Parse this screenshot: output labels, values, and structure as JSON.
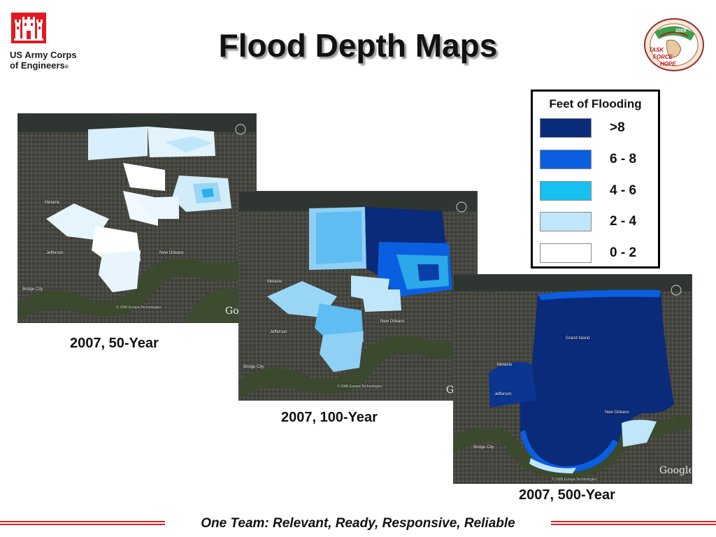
{
  "slide": {
    "title": "Flood Depth Maps",
    "footer": "One Team: Relevant, Ready, Responsive, Reliable"
  },
  "logo_left": {
    "line1": "US Army Corps",
    "line2": "of Engineers",
    "reg": "®",
    "icon": "castle-icon",
    "color": "#e01a22"
  },
  "logo_right": {
    "icon": "task-force-hope-seal",
    "year": "2005",
    "text_task": "TASK",
    "text_force": "FORCE",
    "text_hope": "HOPE"
  },
  "legend": {
    "title": "Feet of Flooding",
    "items": [
      {
        "label": ">8",
        "color": "#0a2a7a"
      },
      {
        "label": "6 - 8",
        "color": "#0a5fe0"
      },
      {
        "label": "4 - 6",
        "color": "#16c0f0"
      },
      {
        "label": "2 - 4",
        "color": "#bfe6fb"
      },
      {
        "label": "0 - 2",
        "color": "#ffffff"
      }
    ]
  },
  "maps": [
    {
      "caption": "2007, 50-Year",
      "places": {
        "metairie": "Metairie",
        "jefferson": "Jefferson",
        "new_orleans": "New Orleans",
        "bridge_city": "Bridge City"
      },
      "attribution": "© 2008 Europa Technologies",
      "google": "Goo"
    },
    {
      "caption": "2007, 100-Year",
      "places": {
        "metairie": "Metairie",
        "jefferson": "Jefferson",
        "new_orleans": "New Orleans",
        "bridge_city": "Bridge City"
      },
      "attribution": "© 2008 Europa Technologies",
      "google": "Goo"
    },
    {
      "caption": "2007, 500-Year",
      "places": {
        "metairie": "Metairie",
        "jefferson": "Jefferson",
        "new_orleans": "New Orleans",
        "bridge_city": "Bridge City",
        "grand_island": "Grand Island"
      },
      "attribution": "© 2008 Europa Technologies",
      "google": "Google"
    }
  ]
}
